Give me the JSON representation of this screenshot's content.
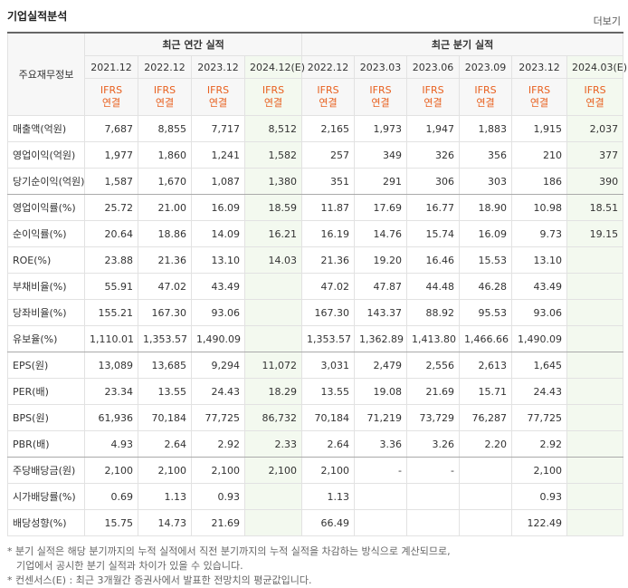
{
  "header": {
    "title": "기업실적분석",
    "more": "더보기"
  },
  "table": {
    "corner": "주요재무정보",
    "groups": [
      "최근 연간 실적",
      "최근 분기 실적"
    ],
    "periods": [
      "2021.12",
      "2022.12",
      "2023.12",
      "2024.12(E)",
      "2022.12",
      "2023.03",
      "2023.06",
      "2023.09",
      "2023.12",
      "2024.03(E)"
    ],
    "standard": "IFRS",
    "scope": "연결",
    "rows": [
      {
        "label": "매출액(억원)",
        "values": [
          "7,687",
          "8,855",
          "7,717",
          "8,512",
          "2,165",
          "1,973",
          "1,947",
          "1,883",
          "1,915",
          "2,037"
        ]
      },
      {
        "label": "영업이익(억원)",
        "values": [
          "1,977",
          "1,860",
          "1,241",
          "1,582",
          "257",
          "349",
          "326",
          "356",
          "210",
          "377"
        ]
      },
      {
        "label": "당기순이익(억원)",
        "values": [
          "1,587",
          "1,670",
          "1,087",
          "1,380",
          "351",
          "291",
          "306",
          "303",
          "186",
          "390"
        ]
      },
      {
        "label": "영업이익률(%)",
        "values": [
          "25.72",
          "21.00",
          "16.09",
          "18.59",
          "11.87",
          "17.69",
          "16.77",
          "18.90",
          "10.98",
          "18.51"
        ]
      },
      {
        "label": "순이익률(%)",
        "values": [
          "20.64",
          "18.86",
          "14.09",
          "16.21",
          "16.19",
          "14.76",
          "15.74",
          "16.09",
          "9.73",
          "19.15"
        ]
      },
      {
        "label": "ROE(%)",
        "values": [
          "23.88",
          "21.36",
          "13.10",
          "14.03",
          "21.36",
          "19.20",
          "16.46",
          "15.53",
          "13.10",
          null
        ]
      },
      {
        "label": "부채비율(%)",
        "values": [
          "55.91",
          "47.02",
          "43.49",
          null,
          "47.02",
          "47.87",
          "44.48",
          "46.28",
          "43.49",
          null
        ]
      },
      {
        "label": "당좌비율(%)",
        "values": [
          "155.21",
          "167.30",
          "93.06",
          null,
          "167.30",
          "143.37",
          "88.92",
          "95.53",
          "93.06",
          null
        ]
      },
      {
        "label": "유보율(%)",
        "values": [
          "1,110.01",
          "1,353.57",
          "1,490.09",
          null,
          "1,353.57",
          "1,362.89",
          "1,413.80",
          "1,466.66",
          "1,490.09",
          null
        ]
      },
      {
        "label": "EPS(원)",
        "values": [
          "13,089",
          "13,685",
          "9,294",
          "11,072",
          "3,031",
          "2,479",
          "2,556",
          "2,613",
          "1,645",
          null
        ]
      },
      {
        "label": "PER(배)",
        "values": [
          "23.34",
          "13.55",
          "24.43",
          "18.29",
          "13.55",
          "19.08",
          "21.69",
          "15.71",
          "24.43",
          null
        ]
      },
      {
        "label": "BPS(원)",
        "values": [
          "61,936",
          "70,184",
          "77,725",
          "86,732",
          "70,184",
          "71,219",
          "73,729",
          "76,287",
          "77,725",
          null
        ]
      },
      {
        "label": "PBR(배)",
        "values": [
          "4.93",
          "2.64",
          "2.92",
          "2.33",
          "2.64",
          "3.36",
          "3.26",
          "2.20",
          "2.92",
          null
        ]
      },
      {
        "label": "주당배당금(원)",
        "values": [
          "2,100",
          "2,100",
          "2,100",
          "2,100",
          "2,100",
          "-",
          "-",
          null,
          "2,100",
          null
        ]
      },
      {
        "label": "시가배당률(%)",
        "values": [
          "0.69",
          "1.13",
          "0.93",
          null,
          "1.13",
          null,
          null,
          null,
          "0.93",
          null
        ]
      },
      {
        "label": "배당성향(%)",
        "values": [
          "15.75",
          "14.73",
          "21.69",
          null,
          "66.49",
          null,
          null,
          null,
          "122.49",
          null
        ]
      }
    ]
  },
  "notes": [
    "* 분기 실적은 해당 분기까지의 누적 실적에서 직전 분기까지의 누적 실적을 차감하는 방식으로 계산되므로,",
    "기업에서 공시한 분기 실적과 차이가 있을 수 있습니다.",
    "* 컨센서스(E) : 최근 3개월간 증권사에서 발표한 전망치의 평균값입니다."
  ]
}
